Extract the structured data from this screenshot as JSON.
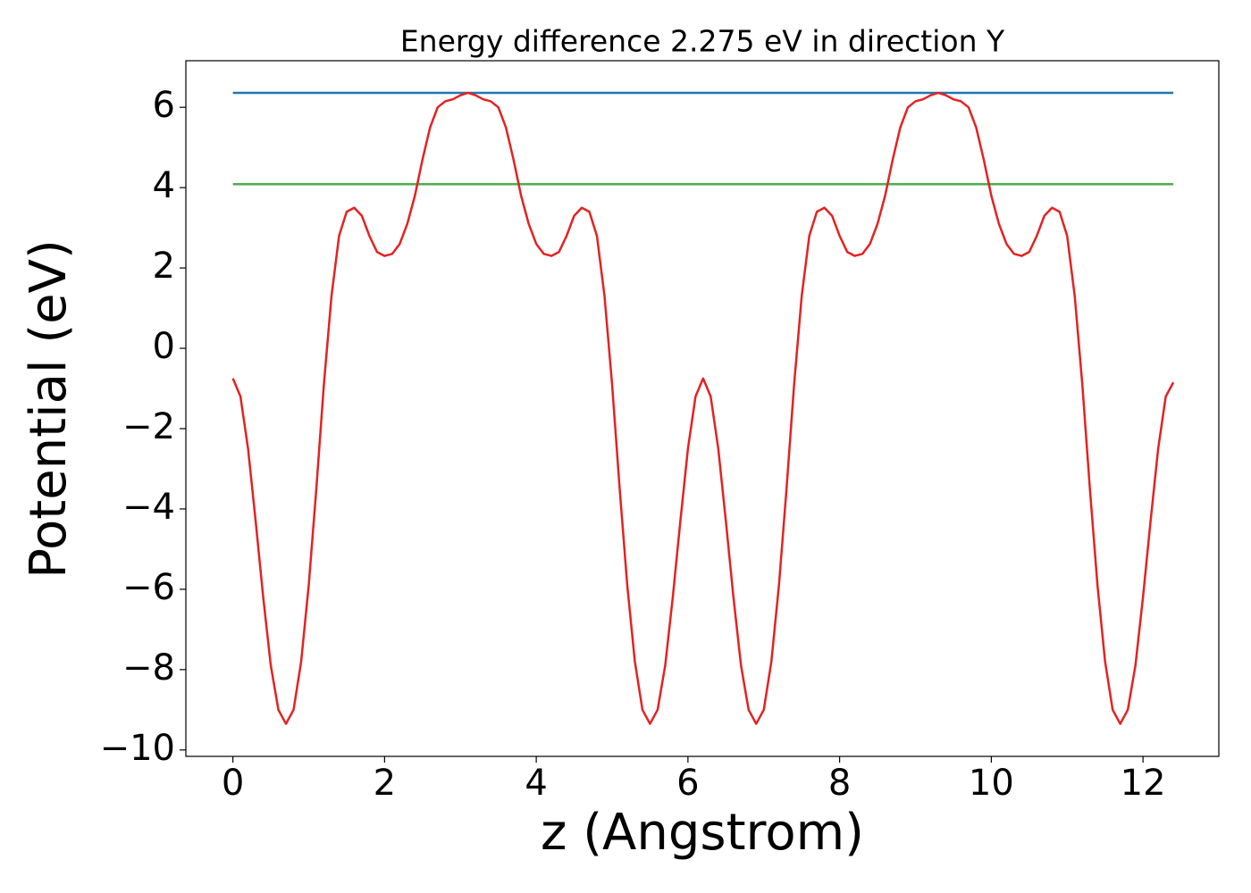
{
  "chart_data": {
    "type": "line",
    "title": "Energy difference 2.275 eV in direction Y",
    "xlabel": "z (Angstrom)",
    "ylabel": "Potential (eV)",
    "xlim": [
      -0.62,
      13.0
    ],
    "ylim": [
      -10.16,
      7.16
    ],
    "xticks": [
      0,
      2,
      4,
      6,
      8,
      10,
      12
    ],
    "yticks": [
      {
        "value": -10,
        "label": "−10"
      },
      {
        "value": -8,
        "label": "−8"
      },
      {
        "value": -6,
        "label": "−6"
      },
      {
        "value": -4,
        "label": "−4"
      },
      {
        "value": -2,
        "label": "−2"
      },
      0,
      2,
      4,
      6
    ],
    "series": [
      {
        "color": "#1f77b4",
        "x": [
          0,
          12.4
        ],
        "values": [
          6.36,
          6.36
        ]
      },
      {
        "color": "#4caf50",
        "x": [
          0,
          12.4
        ],
        "values": [
          4.085,
          4.085
        ]
      },
      {
        "color": "#e32222",
        "x": [
          0,
          0.1,
          0.2,
          0.3,
          0.4,
          0.5,
          0.6,
          0.7,
          0.8,
          0.9,
          1.0,
          1.1,
          1.2,
          1.3,
          1.4,
          1.5,
          1.6,
          1.7,
          1.8,
          1.9,
          2.0,
          2.1,
          2.2,
          2.3,
          2.4,
          2.5,
          2.6,
          2.7,
          2.8,
          2.9,
          3.0,
          3.1,
          3.2,
          3.3,
          3.4,
          3.5,
          3.6,
          3.7,
          3.8,
          3.9,
          4.0,
          4.1,
          4.2,
          4.3,
          4.4,
          4.5,
          4.6,
          4.7,
          4.8,
          4.9,
          5.0,
          5.1,
          5.2,
          5.3,
          5.4,
          5.5,
          5.6,
          5.7,
          5.8,
          5.9,
          6.0,
          6.1,
          6.2,
          6.3,
          6.4,
          6.5,
          6.6,
          6.7,
          6.8,
          6.9,
          7.0,
          7.1,
          7.2,
          7.3,
          7.4,
          7.5,
          7.6,
          7.7,
          7.8,
          7.9,
          8.0,
          8.1,
          8.2,
          8.3,
          8.4,
          8.5,
          8.6,
          8.7,
          8.8,
          8.9,
          9.0,
          9.1,
          9.2,
          9.3,
          9.4,
          9.5,
          9.6,
          9.7,
          9.8,
          9.9,
          10.0,
          10.1,
          10.2,
          10.3,
          10.4,
          10.5,
          10.6,
          10.7,
          10.8,
          10.9,
          11.0,
          11.1,
          11.2,
          11.3,
          11.4,
          11.5,
          11.6,
          11.7,
          11.8,
          11.9,
          12.0,
          12.1,
          12.2,
          12.3,
          12.4
        ],
        "values": [
          -0.75,
          -1.2,
          -2.5,
          -4.3,
          -6.2,
          -7.9,
          -9.0,
          -9.35,
          -9.0,
          -7.8,
          -5.9,
          -3.5,
          -0.9,
          1.3,
          2.8,
          3.4,
          3.5,
          3.3,
          2.8,
          2.4,
          2.3,
          2.35,
          2.6,
          3.1,
          3.8,
          4.7,
          5.5,
          6.0,
          6.15,
          6.2,
          6.3,
          6.36,
          6.3,
          6.2,
          6.15,
          6.0,
          5.5,
          4.7,
          3.8,
          3.1,
          2.6,
          2.35,
          2.3,
          2.4,
          2.8,
          3.3,
          3.5,
          3.4,
          2.8,
          1.3,
          -0.9,
          -3.5,
          -5.9,
          -7.8,
          -9.0,
          -9.35,
          -9.0,
          -7.9,
          -6.2,
          -4.3,
          -2.5,
          -1.2,
          -0.75,
          -1.2,
          -2.5,
          -4.3,
          -6.2,
          -7.9,
          -9.0,
          -9.35,
          -9.0,
          -7.8,
          -5.9,
          -3.5,
          -0.9,
          1.3,
          2.8,
          3.4,
          3.5,
          3.3,
          2.8,
          2.4,
          2.3,
          2.35,
          2.6,
          3.1,
          3.8,
          4.7,
          5.5,
          6.0,
          6.15,
          6.2,
          6.3,
          6.36,
          6.3,
          6.2,
          6.15,
          6.0,
          5.5,
          4.7,
          3.8,
          3.1,
          2.6,
          2.35,
          2.3,
          2.4,
          2.8,
          3.3,
          3.5,
          3.4,
          2.8,
          1.3,
          -0.9,
          -3.5,
          -5.9,
          -7.8,
          -9.0,
          -9.35,
          -9.0,
          -7.9,
          -6.2,
          -4.3,
          -2.5,
          -1.2,
          -0.85
        ]
      }
    ]
  }
}
